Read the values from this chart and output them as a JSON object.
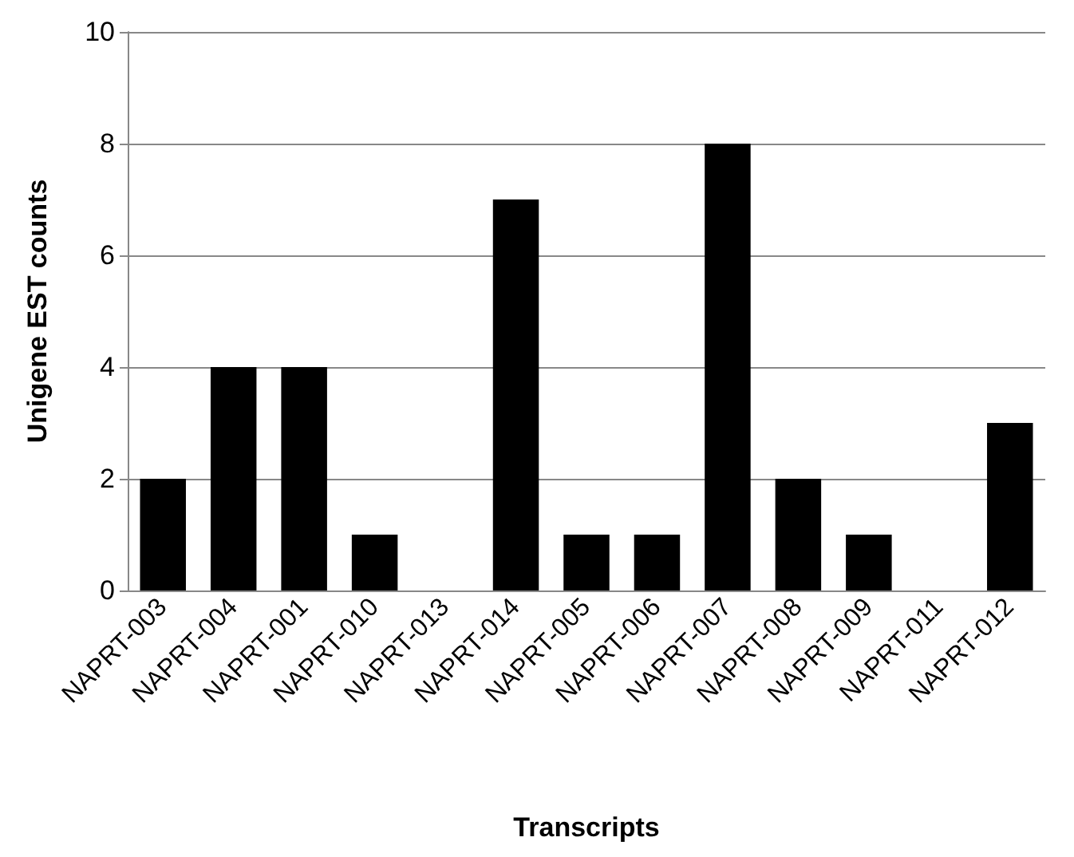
{
  "chart_data": {
    "type": "bar",
    "xlabel": "Transcripts",
    "ylabel": "Unigene EST counts",
    "categories": [
      "NAPRT-003",
      "NAPRT-004",
      "NAPRT-001",
      "NAPRT-010",
      "NAPRT-013",
      "NAPRT-014",
      "NAPRT-005",
      "NAPRT-006",
      "NAPRT-007",
      "NAPRT-008",
      "NAPRT-009",
      "NAPRT-011",
      "NAPRT-012"
    ],
    "values": [
      2,
      4,
      4,
      1,
      0,
      7,
      1,
      1,
      8,
      2,
      1,
      0,
      3
    ],
    "color": "#000000",
    "ylim": [
      0,
      10
    ],
    "yticks": [
      0,
      2,
      4,
      6,
      8,
      10
    ],
    "grid": "y"
  }
}
